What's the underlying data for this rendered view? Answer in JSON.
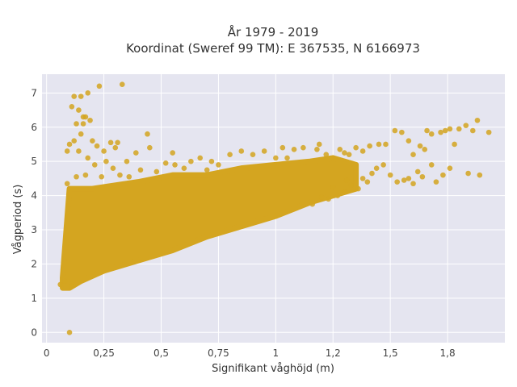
{
  "chart_data": {
    "type": "scatter",
    "title": "År 1979 - 2019",
    "subtitle": "Koordinat (Sweref 99 TM): E 367535, N 6166973",
    "xlabel": "Signifikant våghöjd (m)",
    "ylabel": "Vågperiod (s)",
    "xlim": [
      -0.02,
      2.0
    ],
    "ylim": [
      -0.3,
      7.55
    ],
    "x_ticks": [
      0,
      0.25,
      0.5,
      0.75,
      1,
      1.25,
      1.5,
      1.75
    ],
    "x_tick_labels": [
      "0",
      "0,25",
      "0,5",
      "0,75",
      "1",
      "1,2",
      "1,5",
      "1,8"
    ],
    "y_ticks": [
      0,
      1,
      2,
      3,
      4,
      5,
      6,
      7
    ],
    "y_tick_labels": [
      "0",
      "1",
      "2",
      "3",
      "4",
      "5",
      "6",
      "7"
    ],
    "grid": true,
    "legend": "none",
    "plot_background": "#e5e5f0",
    "marker_color": "#d4a520",
    "dense_region": {
      "lower_edge": [
        [
          0.07,
          1.3
        ],
        [
          0.1,
          1.3
        ],
        [
          0.15,
          1.5
        ],
        [
          0.25,
          1.8
        ],
        [
          0.4,
          2.1
        ],
        [
          0.55,
          2.4
        ],
        [
          0.7,
          2.8
        ],
        [
          0.85,
          3.1
        ],
        [
          1.0,
          3.4
        ],
        [
          1.15,
          3.8
        ],
        [
          1.25,
          4.0
        ],
        [
          1.35,
          4.2
        ]
      ],
      "upper_edge": [
        [
          0.07,
          1.6
        ],
        [
          0.1,
          4.2
        ],
        [
          0.2,
          4.2
        ],
        [
          0.4,
          4.4
        ],
        [
          0.55,
          4.6
        ],
        [
          0.7,
          4.6
        ],
        [
          0.85,
          4.8
        ],
        [
          1.0,
          4.9
        ],
        [
          1.15,
          5.0
        ],
        [
          1.25,
          5.1
        ],
        [
          1.35,
          4.9
        ]
      ]
    },
    "points": [
      {
        "x": 0.1,
        "y": 0.0
      },
      {
        "x": 0.06,
        "y": 1.4
      },
      {
        "x": 0.08,
        "y": 1.5
      },
      {
        "x": 0.11,
        "y": 1.35
      },
      {
        "x": 0.1,
        "y": 5.5
      },
      {
        "x": 0.11,
        "y": 6.6
      },
      {
        "x": 0.12,
        "y": 6.9
      },
      {
        "x": 0.15,
        "y": 6.9
      },
      {
        "x": 0.18,
        "y": 7.0
      },
      {
        "x": 0.14,
        "y": 6.5
      },
      {
        "x": 0.16,
        "y": 6.3
      },
      {
        "x": 0.17,
        "y": 6.3
      },
      {
        "x": 0.13,
        "y": 6.1
      },
      {
        "x": 0.19,
        "y": 6.2
      },
      {
        "x": 0.16,
        "y": 6.1
      },
      {
        "x": 0.23,
        "y": 7.2
      },
      {
        "x": 0.33,
        "y": 7.25
      },
      {
        "x": 0.15,
        "y": 5.8
      },
      {
        "x": 0.2,
        "y": 5.6
      },
      {
        "x": 0.12,
        "y": 5.6
      },
      {
        "x": 0.09,
        "y": 5.3
      },
      {
        "x": 0.14,
        "y": 5.3
      },
      {
        "x": 0.22,
        "y": 5.45
      },
      {
        "x": 0.28,
        "y": 5.55
      },
      {
        "x": 0.3,
        "y": 5.4
      },
      {
        "x": 0.31,
        "y": 5.55
      },
      {
        "x": 0.25,
        "y": 5.3
      },
      {
        "x": 0.18,
        "y": 5.1
      },
      {
        "x": 0.21,
        "y": 4.9
      },
      {
        "x": 0.26,
        "y": 5.0
      },
      {
        "x": 0.29,
        "y": 4.8
      },
      {
        "x": 0.35,
        "y": 5.0
      },
      {
        "x": 0.39,
        "y": 5.25
      },
      {
        "x": 0.41,
        "y": 4.75
      },
      {
        "x": 0.44,
        "y": 5.8
      },
      {
        "x": 0.45,
        "y": 5.4
      },
      {
        "x": 0.52,
        "y": 4.95
      },
      {
        "x": 0.55,
        "y": 5.25
      },
      {
        "x": 0.56,
        "y": 4.9
      },
      {
        "x": 0.63,
        "y": 5.0
      },
      {
        "x": 0.67,
        "y": 5.1
      },
      {
        "x": 0.72,
        "y": 5.0
      },
      {
        "x": 0.75,
        "y": 4.9
      },
      {
        "x": 0.8,
        "y": 5.2
      },
      {
        "x": 0.85,
        "y": 5.3
      },
      {
        "x": 0.9,
        "y": 5.2
      },
      {
        "x": 0.95,
        "y": 5.3
      },
      {
        "x": 1.0,
        "y": 5.1
      },
      {
        "x": 1.03,
        "y": 5.4
      },
      {
        "x": 1.05,
        "y": 5.1
      },
      {
        "x": 1.08,
        "y": 5.35
      },
      {
        "x": 1.12,
        "y": 5.4
      },
      {
        "x": 1.18,
        "y": 5.35
      },
      {
        "x": 1.19,
        "y": 5.5
      },
      {
        "x": 1.22,
        "y": 5.2
      },
      {
        "x": 1.28,
        "y": 5.35
      },
      {
        "x": 1.3,
        "y": 5.25
      },
      {
        "x": 1.32,
        "y": 5.2
      },
      {
        "x": 1.35,
        "y": 5.4
      },
      {
        "x": 1.38,
        "y": 5.3
      },
      {
        "x": 1.41,
        "y": 5.45
      },
      {
        "x": 1.45,
        "y": 5.5
      },
      {
        "x": 1.48,
        "y": 5.5
      },
      {
        "x": 1.52,
        "y": 5.9
      },
      {
        "x": 1.55,
        "y": 5.85
      },
      {
        "x": 1.58,
        "y": 5.6
      },
      {
        "x": 1.6,
        "y": 5.2
      },
      {
        "x": 1.63,
        "y": 5.45
      },
      {
        "x": 1.65,
        "y": 5.35
      },
      {
        "x": 1.66,
        "y": 5.9
      },
      {
        "x": 1.68,
        "y": 5.8
      },
      {
        "x": 1.72,
        "y": 5.85
      },
      {
        "x": 1.74,
        "y": 5.9
      },
      {
        "x": 1.76,
        "y": 5.95
      },
      {
        "x": 1.78,
        "y": 5.5
      },
      {
        "x": 1.8,
        "y": 5.95
      },
      {
        "x": 1.83,
        "y": 6.05
      },
      {
        "x": 1.86,
        "y": 5.9
      },
      {
        "x": 1.88,
        "y": 6.2
      },
      {
        "x": 1.93,
        "y": 5.85
      },
      {
        "x": 1.84,
        "y": 4.65
      },
      {
        "x": 1.89,
        "y": 4.6
      },
      {
        "x": 1.76,
        "y": 4.8
      },
      {
        "x": 1.68,
        "y": 4.9
      },
      {
        "x": 1.62,
        "y": 4.7
      },
      {
        "x": 1.58,
        "y": 4.5
      },
      {
        "x": 1.56,
        "y": 4.45
      },
      {
        "x": 1.6,
        "y": 4.35
      },
      {
        "x": 1.53,
        "y": 4.4
      },
      {
        "x": 1.5,
        "y": 4.6
      },
      {
        "x": 1.47,
        "y": 4.9
      },
      {
        "x": 1.44,
        "y": 4.8
      },
      {
        "x": 1.42,
        "y": 4.65
      },
      {
        "x": 1.4,
        "y": 4.4
      },
      {
        "x": 1.38,
        "y": 4.5
      },
      {
        "x": 1.36,
        "y": 4.2
      },
      {
        "x": 1.33,
        "y": 4.3
      },
      {
        "x": 1.31,
        "y": 4.45
      },
      {
        "x": 1.3,
        "y": 4.1
      },
      {
        "x": 1.27,
        "y": 4.0
      },
      {
        "x": 1.25,
        "y": 4.25
      },
      {
        "x": 1.23,
        "y": 3.9
      },
      {
        "x": 1.2,
        "y": 3.95
      },
      {
        "x": 1.16,
        "y": 3.75
      },
      {
        "x": 1.7,
        "y": 4.4
      },
      {
        "x": 1.64,
        "y": 4.55
      },
      {
        "x": 1.73,
        "y": 4.6
      },
      {
        "x": 0.09,
        "y": 4.35
      },
      {
        "x": 0.13,
        "y": 4.55
      },
      {
        "x": 0.17,
        "y": 4.6
      },
      {
        "x": 0.24,
        "y": 4.55
      },
      {
        "x": 0.32,
        "y": 4.6
      },
      {
        "x": 0.36,
        "y": 4.55
      },
      {
        "x": 0.48,
        "y": 4.7
      },
      {
        "x": 0.6,
        "y": 4.8
      },
      {
        "x": 0.7,
        "y": 4.75
      }
    ]
  }
}
